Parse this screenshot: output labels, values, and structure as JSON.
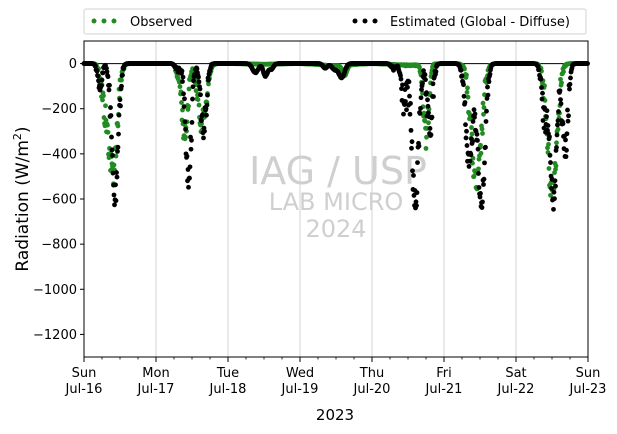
{
  "chart_data": {
    "type": "scatter",
    "ylabel": "Radiation (W/m²)",
    "ylabel_main": "Radiation (W/m",
    "ylabel_sup": "2",
    "ylabel_close": ")",
    "xlabel": "2023",
    "ylim": [
      -1300,
      100
    ],
    "yticks": [
      0,
      -200,
      -400,
      -600,
      -800,
      -1000,
      -1200
    ],
    "ytick_labels": [
      "0",
      "−200",
      "−400",
      "−600",
      "−800",
      "−1000",
      "−1200"
    ],
    "xlim": [
      0,
      7
    ],
    "xticks": [
      {
        "x": 0,
        "day": "Sun",
        "date": "Jul-16"
      },
      {
        "x": 1,
        "day": "Mon",
        "date": "Jul-17"
      },
      {
        "x": 2,
        "day": "Tue",
        "date": "Jul-18"
      },
      {
        "x": 3,
        "day": "Wed",
        "date": "Jul-19"
      },
      {
        "x": 4,
        "day": "Thu",
        "date": "Jul-20"
      },
      {
        "x": 5,
        "day": "Fri",
        "date": "Jul-21"
      },
      {
        "x": 6,
        "day": "Sat",
        "date": "Jul-22"
      },
      {
        "x": 7,
        "day": "Sun",
        "date": "Jul-23"
      }
    ],
    "grid": "x-major",
    "legend_placement": "above plot",
    "series": [
      {
        "name": "Observed",
        "color": "#228B22",
        "profiles": [
          {
            "day": 0,
            "bumps": [
              [
                0.28,
                140,
                0.045
              ],
              [
                0.4,
                470,
                0.06
              ]
            ],
            "jitter": 70
          },
          {
            "day": 1,
            "bumps": [
              [
                0.3,
                40,
                0.03
              ],
              [
                0.4,
                320,
                0.04
              ],
              [
                0.64,
                260,
                0.06
              ]
            ],
            "jitter": 50
          },
          {
            "day": 2,
            "bumps": [
              [
                0.5,
                3,
                0.2
              ]
            ],
            "jitter": 1
          },
          {
            "day": 3,
            "bumps": [
              [
                0.5,
                10,
                0.2
              ],
              [
                0.62,
                45,
                0.03
              ]
            ],
            "jitter": 3
          },
          {
            "day": 4,
            "bumps": [
              [
                0.5,
                8,
                0.2
              ],
              [
                0.75,
                330,
                0.035
              ]
            ],
            "jitter": 60
          },
          {
            "day": 5,
            "bumps": [
              [
                0.45,
                540,
                0.07
              ]
            ],
            "jitter": 60
          },
          {
            "day": 6,
            "bumps": [
              [
                0.5,
                560,
                0.065
              ]
            ],
            "jitter": 70
          }
        ]
      },
      {
        "name": "Estimated (Global - Diffuse)",
        "color": "#000000",
        "profiles": [
          {
            "day": 0,
            "bumps": [
              [
                0.22,
                100,
                0.03
              ],
              [
                0.43,
                600,
                0.045
              ]
            ],
            "jitter": 55
          },
          {
            "day": 1,
            "bumps": [
              [
                0.3,
                30,
                0.03
              ],
              [
                0.45,
                500,
                0.04
              ],
              [
                0.66,
                290,
                0.04
              ]
            ],
            "jitter": 60
          },
          {
            "day": 2,
            "bumps": [
              [
                0.38,
                40,
                0.04
              ],
              [
                0.52,
                55,
                0.03
              ],
              [
                0.6,
                25,
                0.03
              ]
            ],
            "jitter": 8
          },
          {
            "day": 3,
            "bumps": [
              [
                0.35,
                20,
                0.03
              ],
              [
                0.48,
                25,
                0.04
              ],
              [
                0.58,
                60,
                0.04
              ]
            ],
            "jitter": 8
          },
          {
            "day": 4,
            "bumps": [
              [
                0.3,
                25,
                0.03
              ],
              [
                0.45,
                170,
                0.04
              ],
              [
                0.6,
                630,
                0.045
              ],
              [
                0.8,
                300,
                0.04
              ]
            ],
            "jitter": 70
          },
          {
            "day": 5,
            "bumps": [
              [
                0.35,
                430,
                0.05
              ],
              [
                0.52,
                620,
                0.05
              ]
            ],
            "jitter": 50
          },
          {
            "day": 6,
            "bumps": [
              [
                0.4,
                250,
                0.04
              ],
              [
                0.52,
                630,
                0.04
              ],
              [
                0.68,
                380,
                0.04
              ]
            ],
            "jitter": 60
          }
        ]
      }
    ]
  },
  "watermark": {
    "line1": "IAG / USP",
    "line2": "LAB MICRO",
    "line3": "2024"
  }
}
